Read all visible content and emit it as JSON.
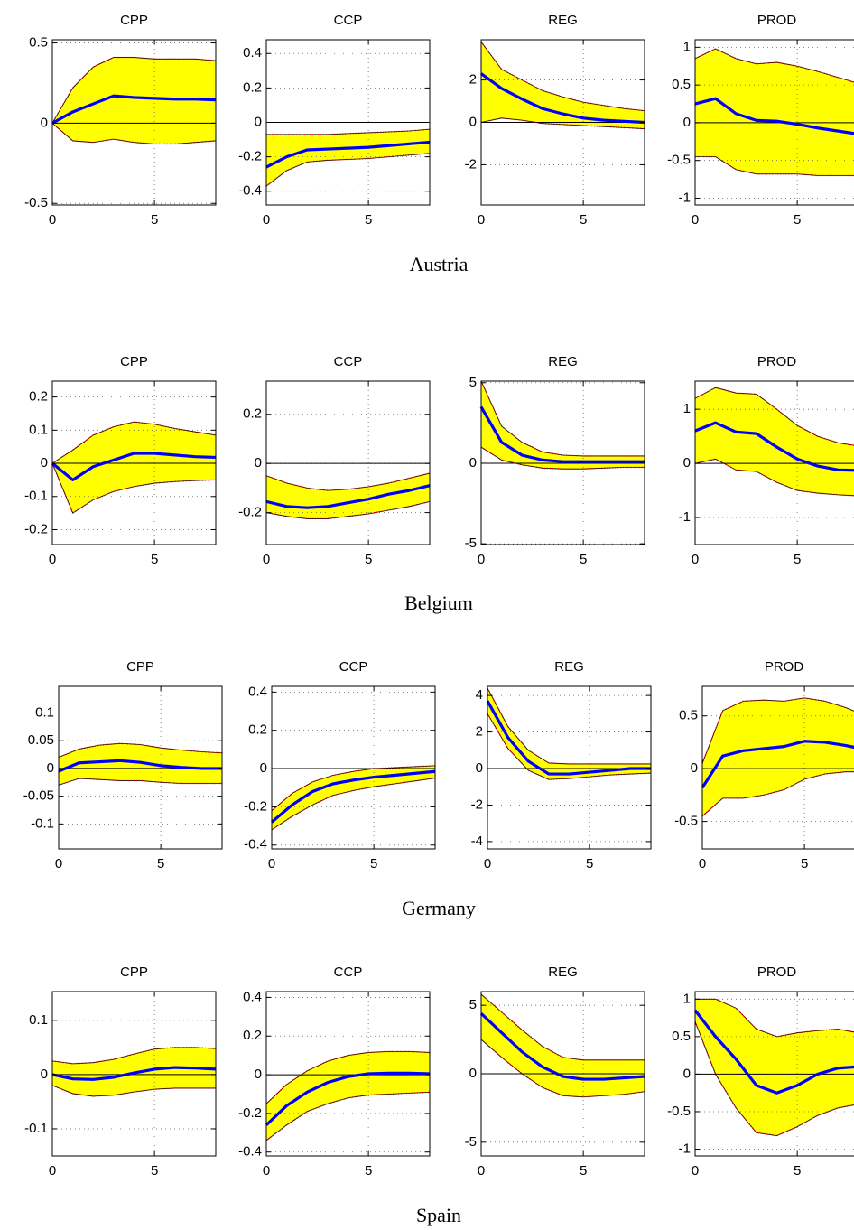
{
  "chart_data": [
    {
      "type": "line",
      "title": "CPP",
      "x": [
        0,
        1,
        2,
        3,
        4,
        5,
        6,
        7,
        8
      ],
      "values": [
        0,
        0.07,
        0.12,
        0.17,
        0.16,
        0.155,
        0.15,
        0.15,
        0.145
      ],
      "upper": [
        0,
        0.22,
        0.35,
        0.41,
        0.41,
        0.4,
        0.4,
        0.4,
        0.39
      ],
      "lower": [
        0,
        -0.11,
        -0.12,
        -0.1,
        -0.12,
        -0.13,
        -0.13,
        -0.12,
        -0.11
      ],
      "color": "#0000ff",
      "band_color": "#ffff00",
      "band_edge_color": "#cc0000",
      "xlim": [
        0,
        8
      ],
      "ylim": [
        -0.51,
        0.52
      ],
      "xticks": [
        0,
        5
      ],
      "yticks": [
        -0.5,
        0,
        0.5
      ],
      "grid": true
    },
    {
      "type": "line",
      "title": "CCP",
      "x": [
        0,
        1,
        2,
        3,
        4,
        5,
        6,
        7,
        8
      ],
      "values": [
        -0.26,
        -0.2,
        -0.16,
        -0.155,
        -0.15,
        -0.145,
        -0.135,
        -0.125,
        -0.115
      ],
      "upper": [
        -0.07,
        -0.07,
        -0.07,
        -0.07,
        -0.065,
        -0.06,
        -0.055,
        -0.05,
        -0.04
      ],
      "lower": [
        -0.37,
        -0.28,
        -0.23,
        -0.22,
        -0.215,
        -0.21,
        -0.2,
        -0.19,
        -0.18
      ],
      "color": "#0000ff",
      "band_color": "#ffff00",
      "band_edge_color": "#cc0000",
      "xlim": [
        0,
        8
      ],
      "ylim": [
        -0.48,
        0.48
      ],
      "xticks": [
        0,
        5
      ],
      "yticks": [
        -0.4,
        -0.2,
        0,
        0.2,
        0.4
      ],
      "grid": true
    },
    {
      "type": "line",
      "title": "REG",
      "x": [
        0,
        1,
        2,
        3,
        4,
        5,
        6,
        7,
        8
      ],
      "values": [
        2.3,
        1.6,
        1.1,
        0.65,
        0.4,
        0.2,
        0.1,
        0.05,
        0
      ],
      "upper": [
        3.8,
        2.5,
        2.0,
        1.5,
        1.2,
        0.95,
        0.8,
        0.65,
        0.55
      ],
      "lower": [
        0,
        0.2,
        0.1,
        -0.05,
        -0.1,
        -0.15,
        -0.2,
        -0.25,
        -0.3
      ],
      "color": "#0000ff",
      "band_color": "#ffff00",
      "band_edge_color": "#cc0000",
      "xlim": [
        0,
        8
      ],
      "ylim": [
        -3.9,
        3.9
      ],
      "xticks": [
        0,
        5
      ],
      "yticks": [
        -2,
        0,
        2
      ],
      "grid": true
    },
    {
      "type": "line",
      "title": "PROD",
      "x": [
        0,
        1,
        2,
        3,
        4,
        5,
        6,
        7,
        8
      ],
      "values": [
        0.25,
        0.32,
        0.12,
        0.03,
        0.02,
        -0.02,
        -0.07,
        -0.11,
        -0.15
      ],
      "upper": [
        0.85,
        0.98,
        0.85,
        0.78,
        0.8,
        0.75,
        0.68,
        0.6,
        0.52
      ],
      "lower": [
        -0.45,
        -0.45,
        -0.62,
        -0.68,
        -0.68,
        -0.68,
        -0.7,
        -0.7,
        -0.7
      ],
      "color": "#0000ff",
      "band_color": "#ffff00",
      "band_edge_color": "#cc0000",
      "xlim": [
        0,
        8
      ],
      "ylim": [
        -1.09,
        1.1
      ],
      "xticks": [
        0,
        5
      ],
      "yticks": [
        -1,
        -0.5,
        0,
        0.5,
        1
      ],
      "grid": true
    },
    {
      "type": "line",
      "title": "CPP",
      "x": [
        0,
        1,
        2,
        3,
        4,
        5,
        6,
        7,
        8
      ],
      "values": [
        0,
        -0.05,
        -0.01,
        0.01,
        0.03,
        0.03,
        0.025,
        0.02,
        0.018
      ],
      "upper": [
        0,
        0.04,
        0.085,
        0.11,
        0.125,
        0.118,
        0.105,
        0.095,
        0.085
      ],
      "lower": [
        0,
        -0.15,
        -0.11,
        -0.085,
        -0.07,
        -0.06,
        -0.055,
        -0.052,
        -0.05
      ],
      "color": "#0000ff",
      "band_color": "#ffff00",
      "band_edge_color": "#cc0000",
      "xlim": [
        0,
        8
      ],
      "ylim": [
        -0.245,
        0.248
      ],
      "xticks": [
        0,
        5
      ],
      "yticks": [
        -0.2,
        -0.1,
        0,
        0.1,
        0.2
      ],
      "grid": true
    },
    {
      "type": "line",
      "title": "CCP",
      "x": [
        0,
        1,
        2,
        3,
        4,
        5,
        6,
        7,
        8
      ],
      "values": [
        -0.155,
        -0.175,
        -0.18,
        -0.175,
        -0.16,
        -0.145,
        -0.125,
        -0.11,
        -0.09
      ],
      "upper": [
        -0.05,
        -0.08,
        -0.1,
        -0.11,
        -0.105,
        -0.095,
        -0.08,
        -0.06,
        -0.04
      ],
      "lower": [
        -0.2,
        -0.215,
        -0.225,
        -0.225,
        -0.215,
        -0.205,
        -0.19,
        -0.175,
        -0.155
      ],
      "color": "#0000ff",
      "band_color": "#ffff00",
      "band_edge_color": "#cc0000",
      "xlim": [
        0,
        8
      ],
      "ylim": [
        -0.33,
        0.335
      ],
      "xticks": [
        0,
        5
      ],
      "yticks": [
        -0.2,
        0,
        0.2
      ],
      "grid": true
    },
    {
      "type": "line",
      "title": "REG",
      "x": [
        0,
        1,
        2,
        3,
        4,
        5,
        6,
        7,
        8
      ],
      "values": [
        3.5,
        1.3,
        0.5,
        0.2,
        0.1,
        0.1,
        0.1,
        0.1,
        0.1
      ],
      "upper": [
        5.1,
        2.3,
        1.3,
        0.7,
        0.5,
        0.45,
        0.45,
        0.45,
        0.45
      ],
      "lower": [
        1.0,
        0.2,
        -0.1,
        -0.3,
        -0.35,
        -0.35,
        -0.3,
        -0.25,
        -0.25
      ],
      "color": "#0000ff",
      "band_color": "#ffff00",
      "band_edge_color": "#cc0000",
      "xlim": [
        0,
        8
      ],
      "ylim": [
        -5.05,
        5.1
      ],
      "xticks": [
        0,
        5
      ],
      "yticks": [
        -5,
        0,
        5
      ],
      "grid": true
    },
    {
      "type": "line",
      "title": "PROD",
      "x": [
        0,
        1,
        2,
        3,
        4,
        5,
        6,
        7,
        8
      ],
      "values": [
        0.6,
        0.75,
        0.58,
        0.55,
        0.3,
        0.08,
        -0.05,
        -0.12,
        -0.13
      ],
      "upper": [
        1.2,
        1.4,
        1.3,
        1.28,
        1.0,
        0.7,
        0.5,
        0.38,
        0.32
      ],
      "lower": [
        0,
        0.08,
        -0.12,
        -0.15,
        -0.35,
        -0.5,
        -0.55,
        -0.58,
        -0.6
      ],
      "color": "#0000ff",
      "band_color": "#ffff00",
      "band_edge_color": "#cc0000",
      "xlim": [
        0,
        8
      ],
      "ylim": [
        -1.5,
        1.52
      ],
      "xticks": [
        0,
        5
      ],
      "yticks": [
        -1,
        0,
        1
      ],
      "grid": true
    },
    {
      "type": "line",
      "title": "CPP",
      "x": [
        0,
        1,
        2,
        3,
        4,
        5,
        6,
        7,
        8
      ],
      "values": [
        -0.005,
        0.01,
        0.012,
        0.014,
        0.011,
        0.005,
        0.002,
        0,
        0
      ],
      "upper": [
        0.02,
        0.035,
        0.042,
        0.045,
        0.043,
        0.037,
        0.033,
        0.03,
        0.028
      ],
      "lower": [
        -0.03,
        -0.018,
        -0.02,
        -0.022,
        -0.022,
        -0.025,
        -0.027,
        -0.027,
        -0.027
      ],
      "color": "#0000ff",
      "band_color": "#ffff00",
      "band_edge_color": "#cc0000",
      "xlim": [
        0,
        8
      ],
      "ylim": [
        -0.145,
        0.148
      ],
      "xticks": [
        0,
        5
      ],
      "yticks": [
        -0.1,
        -0.05,
        0,
        0.05,
        0.1
      ],
      "grid": true
    },
    {
      "type": "line",
      "title": "CCP",
      "x": [
        0,
        1,
        2,
        3,
        4,
        5,
        6,
        7,
        8
      ],
      "values": [
        -0.28,
        -0.19,
        -0.12,
        -0.08,
        -0.06,
        -0.045,
        -0.035,
        -0.025,
        -0.015
      ],
      "upper": [
        -0.22,
        -0.13,
        -0.07,
        -0.035,
        -0.015,
        0,
        0.005,
        0.01,
        0.015
      ],
      "lower": [
        -0.32,
        -0.25,
        -0.19,
        -0.14,
        -0.115,
        -0.095,
        -0.08,
        -0.065,
        -0.05
      ],
      "color": "#0000ff",
      "band_color": "#ffff00",
      "band_edge_color": "#cc0000",
      "xlim": [
        0,
        8
      ],
      "ylim": [
        -0.42,
        0.43
      ],
      "xticks": [
        0,
        5
      ],
      "yticks": [
        -0.4,
        -0.2,
        0,
        0.2,
        0.4
      ],
      "grid": true
    },
    {
      "type": "line",
      "title": "REG",
      "x": [
        0,
        1,
        2,
        3,
        4,
        5,
        6,
        7,
        8
      ],
      "values": [
        3.7,
        1.7,
        0.4,
        -0.3,
        -0.3,
        -0.2,
        -0.1,
        0,
        0
      ],
      "upper": [
        4.4,
        2.3,
        1.0,
        0.3,
        0.25,
        0.25,
        0.25,
        0.25,
        0.25
      ],
      "lower": [
        3.0,
        1.1,
        -0.1,
        -0.6,
        -0.55,
        -0.45,
        -0.35,
        -0.3,
        -0.25
      ],
      "color": "#0000ff",
      "band_color": "#ffff00",
      "band_edge_color": "#cc0000",
      "xlim": [
        0,
        8
      ],
      "ylim": [
        -4.4,
        4.5
      ],
      "xticks": [
        0,
        5
      ],
      "yticks": [
        -4,
        -2,
        0,
        2,
        4
      ],
      "grid": true
    },
    {
      "type": "line",
      "title": "PROD",
      "x": [
        0,
        1,
        2,
        3,
        4,
        5,
        6,
        7,
        8
      ],
      "values": [
        -0.18,
        0.12,
        0.17,
        0.19,
        0.21,
        0.26,
        0.25,
        0.22,
        0.18
      ],
      "upper": [
        0.05,
        0.55,
        0.64,
        0.65,
        0.64,
        0.67,
        0.64,
        0.58,
        0.5
      ],
      "lower": [
        -0.45,
        -0.28,
        -0.28,
        -0.25,
        -0.2,
        -0.1,
        -0.05,
        -0.03,
        -0.03
      ],
      "color": "#0000ff",
      "band_color": "#ffff00",
      "band_edge_color": "#cc0000",
      "xlim": [
        0,
        8
      ],
      "ylim": [
        -0.76,
        0.78
      ],
      "xticks": [
        0,
        5
      ],
      "yticks": [
        -0.5,
        0,
        0.5
      ],
      "grid": true
    },
    {
      "type": "line",
      "title": "CPP",
      "x": [
        0,
        1,
        2,
        3,
        4,
        5,
        6,
        7,
        8
      ],
      "values": [
        0,
        -0.008,
        -0.009,
        -0.005,
        0.003,
        0.01,
        0.013,
        0.012,
        0.01
      ],
      "upper": [
        0.025,
        0.02,
        0.022,
        0.028,
        0.038,
        0.047,
        0.05,
        0.05,
        0.048
      ],
      "lower": [
        -0.02,
        -0.035,
        -0.04,
        -0.038,
        -0.032,
        -0.027,
        -0.025,
        -0.025,
        -0.025
      ],
      "color": "#0000ff",
      "band_color": "#ffff00",
      "band_edge_color": "#cc0000",
      "xlim": [
        0,
        8
      ],
      "ylim": [
        -0.15,
        0.153
      ],
      "xticks": [
        0,
        5
      ],
      "yticks": [
        -0.1,
        0,
        0.1
      ],
      "grid": true
    },
    {
      "type": "line",
      "title": "CCP",
      "x": [
        0,
        1,
        2,
        3,
        4,
        5,
        6,
        7,
        8
      ],
      "values": [
        -0.26,
        -0.16,
        -0.09,
        -0.04,
        -0.01,
        0.005,
        0.008,
        0.008,
        0.005
      ],
      "upper": [
        -0.15,
        -0.05,
        0.02,
        0.07,
        0.1,
        0.115,
        0.12,
        0.12,
        0.115
      ],
      "lower": [
        -0.34,
        -0.26,
        -0.19,
        -0.15,
        -0.12,
        -0.105,
        -0.1,
        -0.095,
        -0.09
      ],
      "color": "#0000ff",
      "band_color": "#ffff00",
      "band_edge_color": "#cc0000",
      "xlim": [
        0,
        8
      ],
      "ylim": [
        -0.42,
        0.43
      ],
      "xticks": [
        0,
        5
      ],
      "yticks": [
        -0.4,
        -0.2,
        0,
        0.2,
        0.4
      ],
      "grid": true
    },
    {
      "type": "line",
      "title": "REG",
      "x": [
        0,
        1,
        2,
        3,
        4,
        5,
        6,
        7,
        8
      ],
      "values": [
        4.4,
        3.0,
        1.6,
        0.5,
        -0.2,
        -0.4,
        -0.4,
        -0.3,
        -0.2
      ],
      "upper": [
        5.8,
        4.5,
        3.2,
        2.0,
        1.2,
        1.0,
        1.0,
        1.0,
        1.0
      ],
      "lower": [
        2.5,
        1.2,
        0,
        -1.0,
        -1.6,
        -1.7,
        -1.6,
        -1.5,
        -1.3
      ],
      "color": "#0000ff",
      "band_color": "#ffff00",
      "band_edge_color": "#cc0000",
      "xlim": [
        0,
        8
      ],
      "ylim": [
        -6,
        6
      ],
      "xticks": [
        0,
        5
      ],
      "yticks": [
        -5,
        0,
        5
      ],
      "grid": true
    },
    {
      "type": "line",
      "title": "PROD",
      "x": [
        0,
        1,
        2,
        3,
        4,
        5,
        6,
        7,
        8
      ],
      "values": [
        0.85,
        0.5,
        0.2,
        -0.15,
        -0.25,
        -0.15,
        0,
        0.08,
        0.1
      ],
      "upper": [
        1.0,
        1.0,
        0.88,
        0.6,
        0.5,
        0.55,
        0.58,
        0.6,
        0.55
      ],
      "lower": [
        0.7,
        0,
        -0.45,
        -0.78,
        -0.82,
        -0.7,
        -0.55,
        -0.45,
        -0.4
      ],
      "color": "#0000ff",
      "band_color": "#ffff00",
      "band_edge_color": "#cc0000",
      "xlim": [
        0,
        8
      ],
      "ylim": [
        -1.09,
        1.1
      ],
      "xticks": [
        0,
        5
      ],
      "yticks": [
        -1,
        -0.5,
        0,
        0.5,
        1
      ],
      "grid": true
    }
  ],
  "captions": [
    "Austria",
    "Belgium",
    "Germany",
    "Spain"
  ]
}
